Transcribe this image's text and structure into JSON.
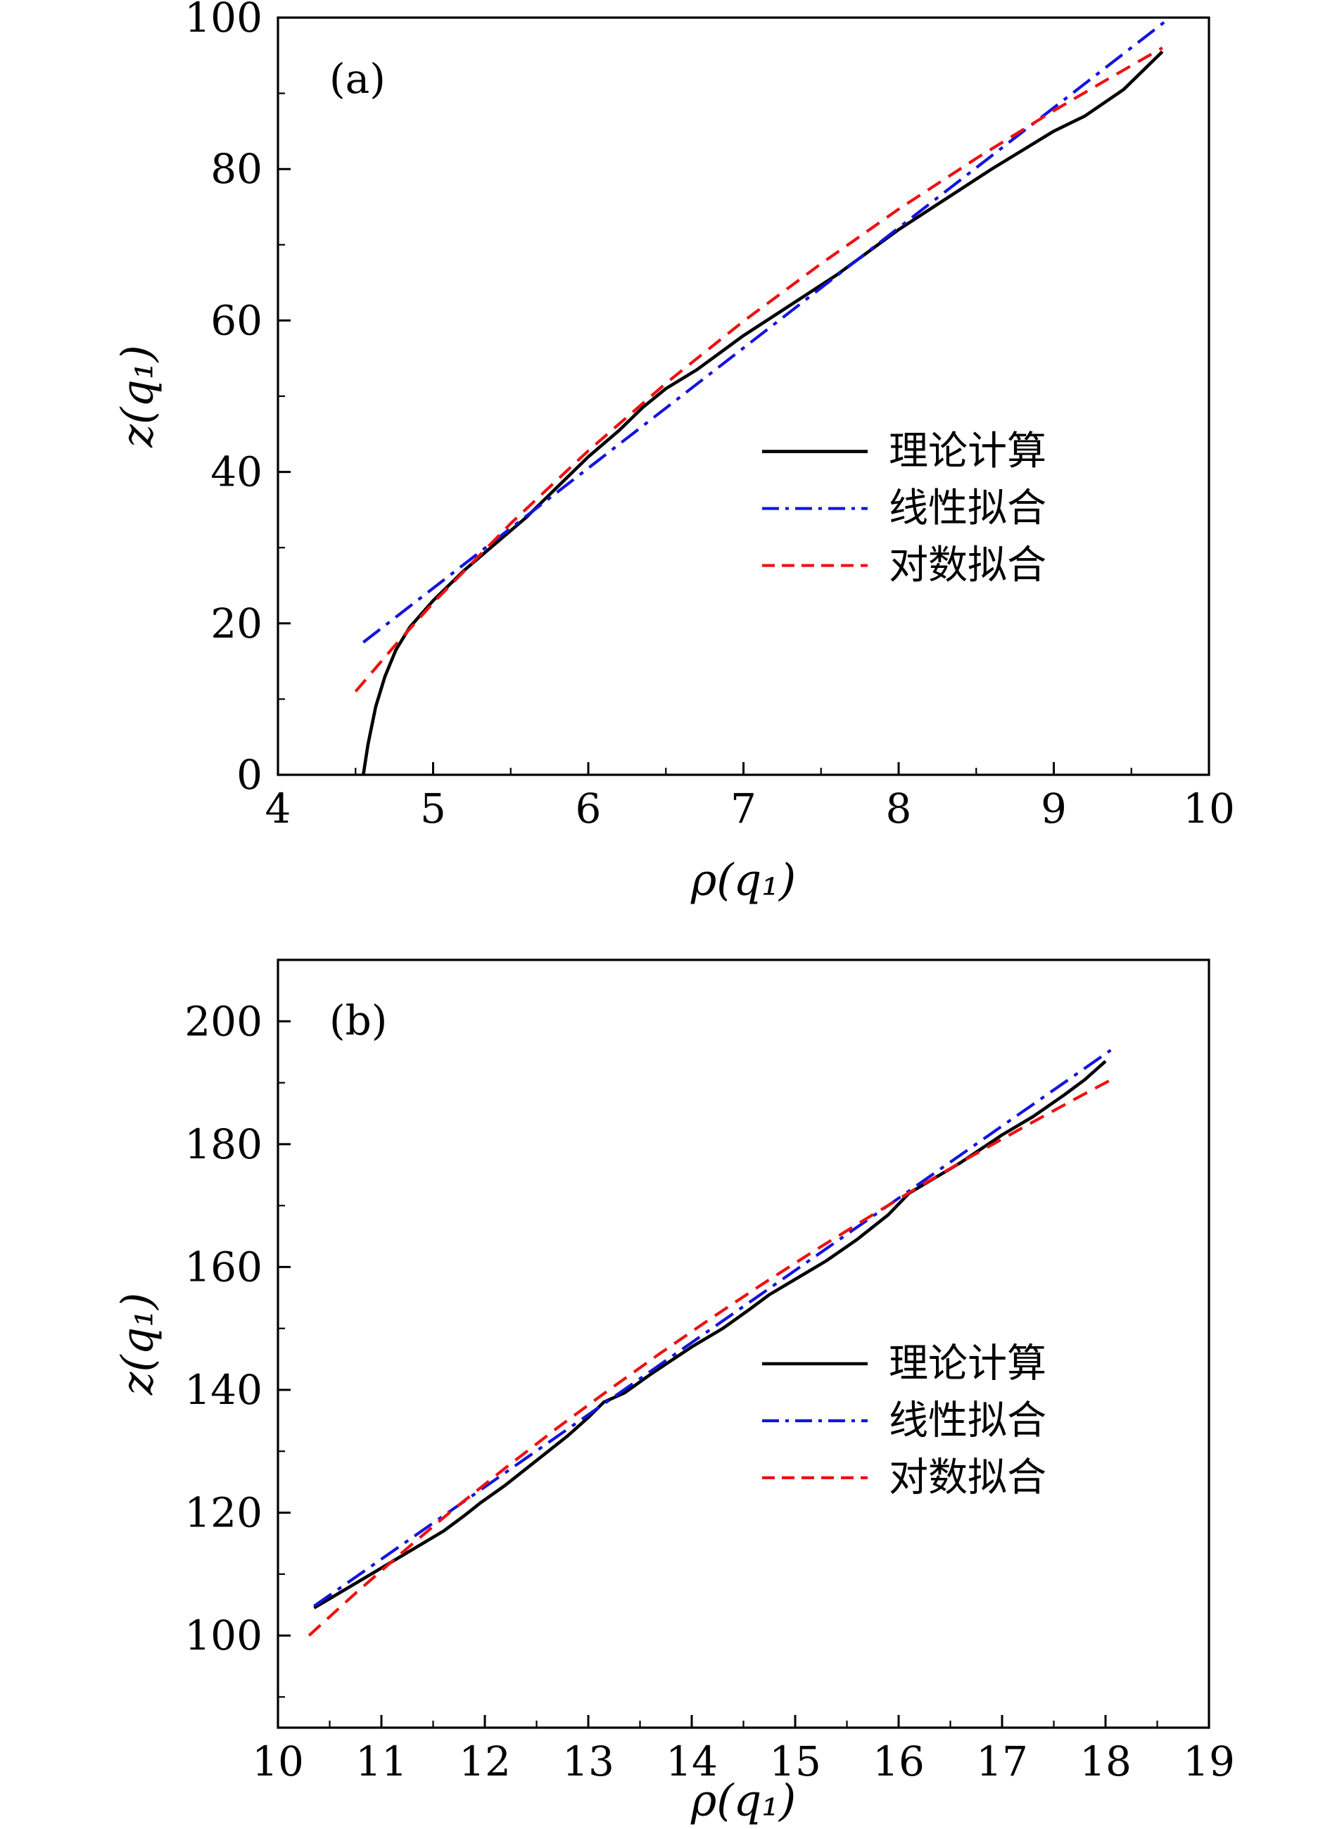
{
  "figure": {
    "background": "#ffffff",
    "panel_count": 2
  },
  "chart_data": [
    {
      "type": "line",
      "panel_label": "(a)",
      "xlabel": "ρ(q₁)",
      "ylabel": "z(q₁)",
      "xlim": [
        4,
        10
      ],
      "ylim": [
        0,
        100
      ],
      "xticks": [
        4,
        5,
        6,
        7,
        8,
        9,
        10
      ],
      "yticks": [
        0,
        20,
        40,
        60,
        80,
        100
      ],
      "x_minor_step": 0.5,
      "y_minor_step": 10,
      "grid": false,
      "legend_position": {
        "x_frac": 0.52,
        "y_frac": 0.573
      },
      "series": [
        {
          "key": "theory",
          "name": "理论计算",
          "color": "#000000",
          "style": "solid",
          "width": 4.6,
          "x": [
            4.55,
            4.58,
            4.63,
            4.69,
            4.76,
            4.85,
            5.0,
            5.2,
            5.4,
            5.6,
            5.8,
            6.0,
            6.2,
            6.35,
            6.5,
            6.7,
            7.0,
            7.3,
            7.6,
            8.0,
            8.3,
            8.6,
            8.8,
            9.0,
            9.2,
            9.45,
            9.7
          ],
          "y": [
            0,
            4,
            9,
            13,
            16.5,
            19.5,
            23,
            27,
            30.5,
            34,
            38,
            42,
            45.5,
            48.5,
            51,
            53.5,
            58,
            62,
            66,
            72,
            76,
            80,
            82.5,
            85,
            87,
            90.5,
            95.5
          ]
        },
        {
          "key": "linear-fit",
          "name": "线性拟合",
          "color": "#1414dd",
          "style": "dashdot",
          "width": 4.2,
          "x": [
            4.55,
            9.75
          ],
          "y": [
            17.5,
            100
          ]
        },
        {
          "key": "log-fit",
          "name": "对数拟合",
          "color": "#ee1111",
          "style": "dashed",
          "width": 4.2,
          "x": [
            4.5,
            4.75,
            5.0,
            5.5,
            6.0,
            6.5,
            7.0,
            7.5,
            8.0,
            8.5,
            9.0,
            9.35,
            9.7
          ],
          "y": [
            11,
            17,
            22.7,
            33.2,
            42.8,
            51.7,
            59.9,
            67.5,
            74.7,
            81.4,
            87.7,
            91.9,
            96
          ]
        }
      ]
    },
    {
      "type": "line",
      "panel_label": "(b)",
      "xlabel": "ρ(q₁)",
      "ylabel": "z(q₁)",
      "xlim": [
        10,
        19
      ],
      "ylim": [
        85,
        210
      ],
      "xticks": [
        10,
        11,
        12,
        13,
        14,
        15,
        16,
        17,
        18,
        19
      ],
      "yticks": [
        100,
        120,
        140,
        160,
        180,
        200
      ],
      "x_minor_step": 0.5,
      "y_minor_step": 10,
      "grid": false,
      "legend_position": {
        "x_frac": 0.52,
        "y_frac": 0.526
      },
      "series": [
        {
          "key": "theory",
          "name": "理论计算",
          "color": "#000000",
          "style": "solid",
          "width": 4.6,
          "x": [
            10.35,
            10.6,
            11.0,
            11.3,
            11.6,
            11.8,
            11.95,
            12.2,
            12.5,
            12.8,
            13.0,
            13.15,
            13.35,
            13.6,
            14.0,
            14.3,
            14.55,
            14.75,
            15.0,
            15.3,
            15.6,
            15.9,
            16.1,
            16.35,
            16.6,
            17.0,
            17.3,
            17.6,
            17.8,
            18.0
          ],
          "y": [
            104.5,
            107,
            111,
            114,
            117,
            119.5,
            121.5,
            124.5,
            128.5,
            132.5,
            135.5,
            138,
            139.5,
            142.5,
            147,
            150,
            153,
            155.5,
            158,
            161,
            164.5,
            168.5,
            172,
            174.5,
            177,
            181.5,
            184.5,
            188,
            190.5,
            193.5
          ]
        },
        {
          "key": "linear-fit",
          "name": "线性拟合",
          "color": "#1414dd",
          "style": "dashdot",
          "width": 4.2,
          "x": [
            10.35,
            18.05
          ],
          "y": [
            104.8,
            195.3
          ]
        },
        {
          "key": "log-fit",
          "name": "对数拟合",
          "color": "#ee1111",
          "style": "dashed",
          "width": 4.2,
          "x": [
            10.3,
            10.75,
            11.2,
            11.7,
            12.2,
            12.7,
            13.2,
            13.7,
            14.2,
            14.7,
            15.2,
            15.7,
            16.2,
            16.7,
            17.2,
            17.7,
            18.1
          ],
          "y": [
            100,
            106.9,
            113.5,
            120.6,
            127.3,
            133.8,
            140,
            146,
            151.8,
            157.4,
            162.8,
            168,
            173.1,
            178,
            182.7,
            187.3,
            190.9
          ]
        }
      ]
    }
  ]
}
